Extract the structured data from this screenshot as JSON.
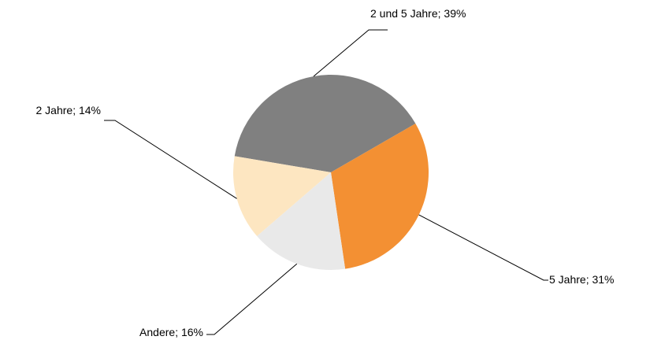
{
  "chart_data": {
    "type": "pie",
    "categories": [
      "2 und 5 Jahre",
      "5 Jahre",
      "Andere",
      "2 Jahre"
    ],
    "values": [
      39,
      31,
      16,
      14
    ],
    "value_labels": [
      "39%",
      "31%",
      "16%",
      "14%"
    ],
    "label_separator": "; ",
    "colors": [
      "#808080",
      "#f39033",
      "#e9e9e9",
      "#fde6c1"
    ]
  }
}
